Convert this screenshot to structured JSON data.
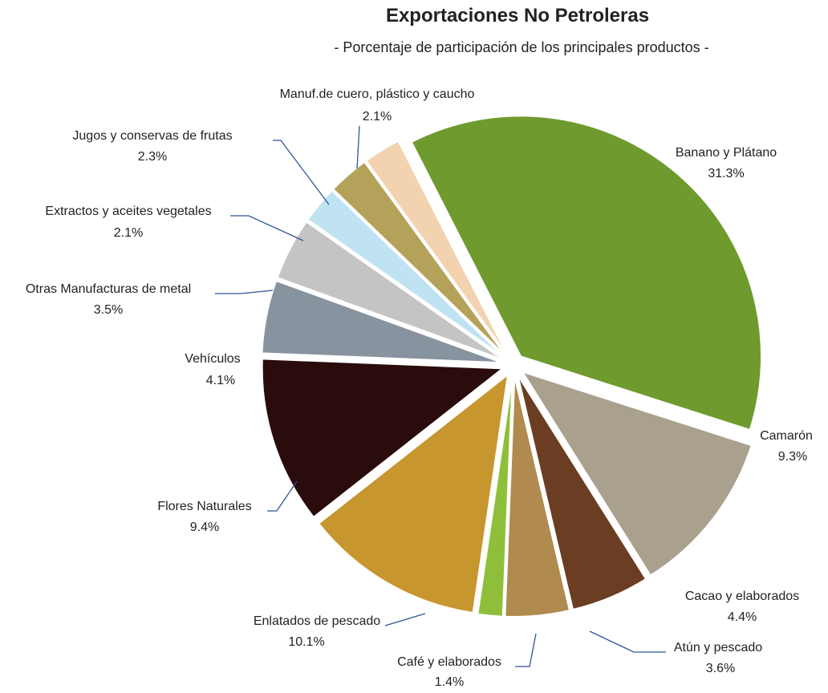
{
  "chart_data": {
    "type": "pie",
    "title": "Exportaciones No Petroleras",
    "subtitle": "- Porcentaje de participación de los principales productos -",
    "categories": [
      "Banano y Plátano",
      "Camarón",
      "Cacao y elaborados",
      "Atún y pescado",
      "Café y elaborados",
      "Enlatados de pescado",
      "Flores Naturales",
      "Vehículos",
      "Otras Manufacturas de metal",
      "Extractos y aceites vegetales",
      "Jugos y conservas de frutas",
      "Manuf.de cuero, plástico y caucho"
    ],
    "values": [
      31.3,
      9.3,
      4.4,
      3.6,
      1.4,
      10.1,
      9.4,
      4.1,
      3.5,
      2.1,
      2.3,
      2.1
    ],
    "value_labels": [
      "31.3%",
      "9.3%",
      "4.4%",
      "3.6%",
      "1.4%",
      "10.1%",
      "9.4%",
      "4.1%",
      "3.5%",
      "2.1%",
      "2.3%",
      "2.1%"
    ],
    "colors": [
      "#6f9a2e",
      "#a9a08e",
      "#6b3d22",
      "#b08a4e",
      "#8fbf3a",
      "#c8962e",
      "#2a0c0c",
      "#8893a0",
      "#c4c4c4",
      "#bfe3f2",
      "#b5a25a",
      "#f3d2b0"
    ]
  }
}
